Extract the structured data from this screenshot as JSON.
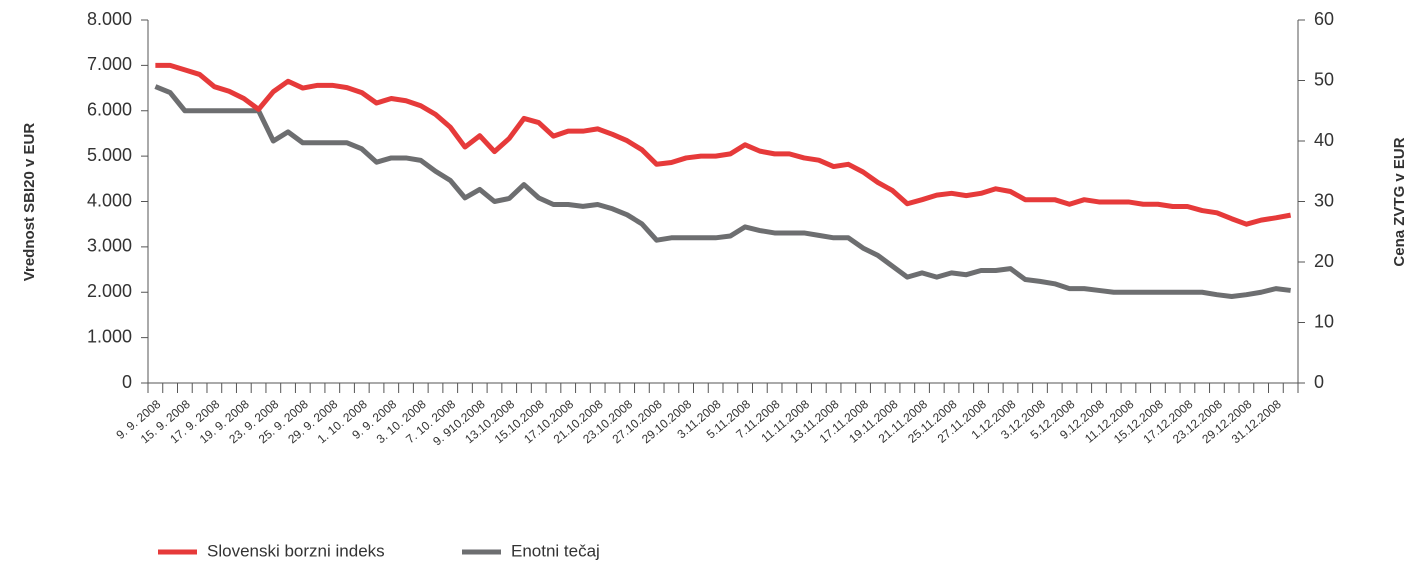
{
  "chart_data": {
    "type": "line",
    "ylabel": "Vrednost SBI20 v EUR",
    "y2label": "Cena ZVTG v EUR",
    "categories": [
      "9. 9. 2008",
      null,
      "15. 9. 2008",
      null,
      "17. 9. 2008",
      null,
      "19. 9. 2008",
      null,
      "23. 9. 2008",
      null,
      "25. 9. 2008",
      null,
      "29. 9. 2008",
      null,
      "1. 10. 2008",
      null,
      "9. 9. 2008",
      null,
      "3. 10. 2008",
      null,
      "7. 10. 2008",
      null,
      "9. 910.2008",
      null,
      "13.10.2008",
      null,
      "15.10.2008",
      null,
      "17.10.2008",
      null,
      "21.10.2008",
      null,
      "23.10.2008",
      null,
      "27.10.2008",
      null,
      "29.10.2008",
      null,
      "3.11.2008",
      null,
      "5.11.2008",
      null,
      "7.11.2008",
      null,
      "11.11.2008",
      null,
      "13.11.2008",
      null,
      "17.11.2008",
      null,
      "19.11.2008",
      null,
      "21.11.2008",
      null,
      "25.11.2008",
      null,
      "27.11.2008",
      null,
      "1.12.2008",
      null,
      "3.12.2008",
      null,
      "5.12.2008",
      null,
      "9.12.2008",
      null,
      "11.12.2008",
      null,
      "15.12.2008",
      null,
      "17.12.2008",
      null,
      "23.12.2008",
      null,
      "29.12.2008",
      null,
      "31.12.2008",
      null
    ],
    "series": [
      {
        "name": "Slovenski borzni indeks",
        "color": "#e63a3a",
        "values": [
          7000,
          7000,
          6900,
          6800,
          6530,
          6430,
          6270,
          6030,
          6420,
          6650,
          6500,
          6560,
          6560,
          6510,
          6400,
          6170,
          6270,
          6220,
          6110,
          5920,
          5640,
          5200,
          5450,
          5100,
          5390,
          5830,
          5740,
          5440,
          5550,
          5550,
          5600,
          5480,
          5340,
          5140,
          4820,
          4860,
          4960,
          5000,
          5000,
          5050,
          5250,
          5110,
          5050,
          5050,
          4960,
          4910,
          4770,
          4820,
          4650,
          4420,
          4240,
          3950,
          4040,
          4140,
          4180,
          4130,
          4180,
          4280,
          4220,
          4040,
          4040,
          4040,
          3940,
          4040,
          3990,
          3990,
          3990,
          3940,
          3940,
          3890,
          3890,
          3800,
          3750,
          3620,
          3500,
          3590,
          3640,
          3700
        ]
      },
      {
        "name": "Enotni tečaj",
        "color": "#6d6e70",
        "axis": "y2",
        "values": [
          49,
          48,
          45,
          45,
          45,
          45,
          45,
          45,
          40,
          41.5,
          39.7,
          39.7,
          39.7,
          39.7,
          38.7,
          36.5,
          37.2,
          37.2,
          36.8,
          35,
          33.5,
          30.6,
          32,
          30,
          30.5,
          32.8,
          30.6,
          29.5,
          29.5,
          29.2,
          29.5,
          28.8,
          27.8,
          26.3,
          23.6,
          24,
          24,
          24,
          24,
          24.3,
          25.8,
          25.2,
          24.8,
          24.8,
          24.8,
          24.4,
          24,
          24,
          22.3,
          21.1,
          19.3,
          17.5,
          18.2,
          17.5,
          18.2,
          17.9,
          18.6,
          18.6,
          18.9,
          17.1,
          16.8,
          16.4,
          15.6,
          15.6,
          15.3,
          15,
          15,
          15,
          15,
          15,
          15,
          15,
          14.6,
          14.3,
          14.6,
          15,
          15.6,
          15.3
        ]
      }
    ],
    "ylim": [
      0,
      8000
    ],
    "yticks": [
      0,
      {
        "value": 1000,
        "label": "1.000"
      },
      {
        "value": 2000,
        "label": "2.000"
      },
      {
        "value": 3000,
        "label": "3.000"
      },
      {
        "value": 4000,
        "label": "4.000"
      },
      {
        "value": 5000,
        "label": "5.000"
      },
      {
        "value": 6000,
        "label": "6.000"
      },
      {
        "value": 7000,
        "label": "7.000"
      },
      {
        "value": 8000,
        "label": "8.000"
      }
    ],
    "y2lim": [
      0,
      60
    ],
    "y2ticks": [
      0,
      10,
      20,
      30,
      40,
      50,
      60
    ],
    "legend": "bottom-left"
  }
}
